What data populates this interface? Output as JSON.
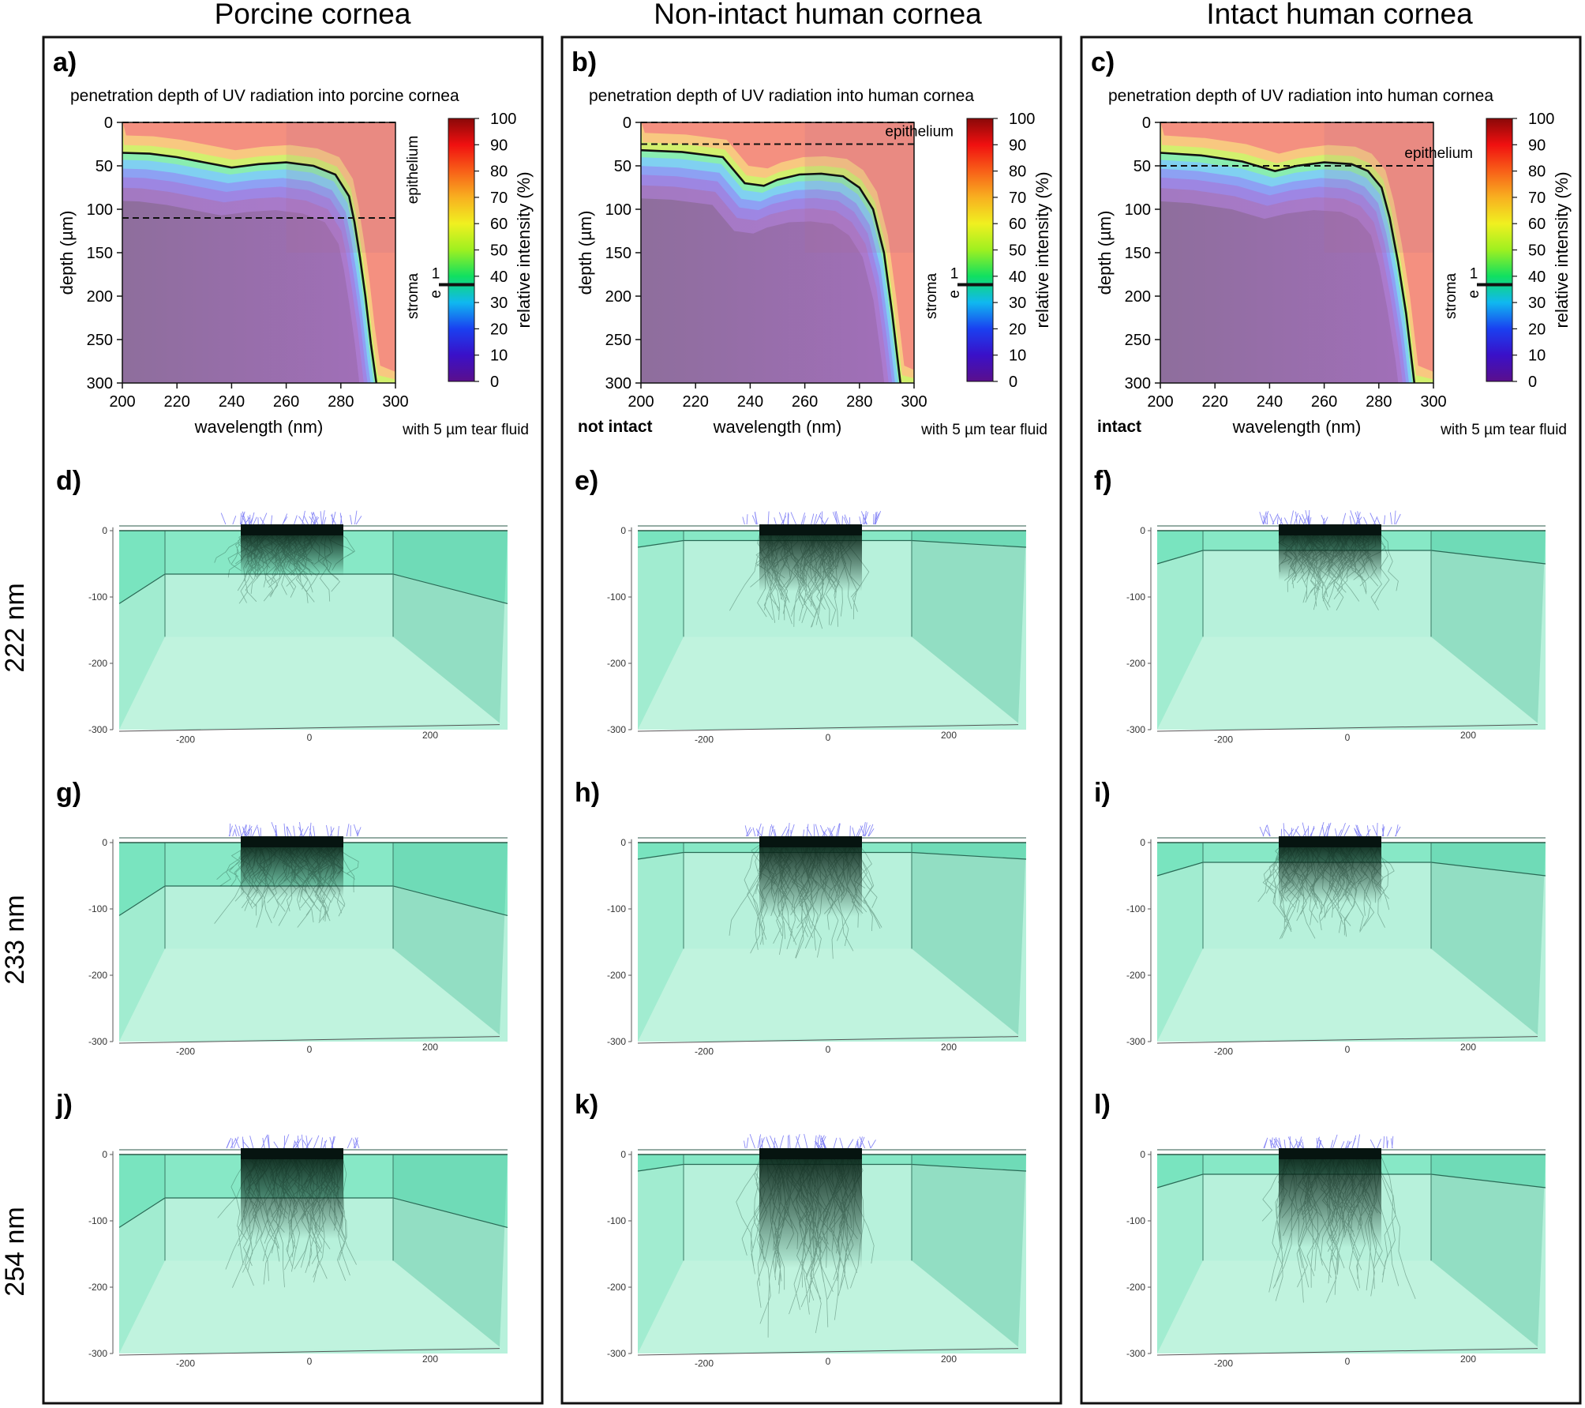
{
  "columns": [
    {
      "title": "Porcine cornea",
      "plot": {
        "label": "a)",
        "title": "penetration depth of UV radiation into porcine cornea",
        "condition": "",
        "epi_depth": 110,
        "epi_label_vertical": true,
        "curve": [
          [
            200,
            35
          ],
          [
            210,
            36
          ],
          [
            220,
            40
          ],
          [
            230,
            46
          ],
          [
            240,
            52
          ],
          [
            250,
            48
          ],
          [
            260,
            46
          ],
          [
            270,
            50
          ],
          [
            278,
            60
          ],
          [
            283,
            85
          ],
          [
            285,
            115
          ],
          [
            287,
            155
          ],
          [
            289,
            200
          ],
          [
            291,
            255
          ],
          [
            293,
            300
          ]
        ]
      },
      "sims": [
        {
          "label": "d)",
          "epi_depth": 110
        },
        {
          "label": "g)",
          "epi_depth": 110
        },
        {
          "label": "j)",
          "epi_depth": 110
        }
      ]
    },
    {
      "title": "Non-intact human cornea",
      "plot": {
        "label": "b)",
        "title": "penetration depth of UV radiation into human cornea",
        "condition": "not intact",
        "epi_depth": 25,
        "epi_label_vertical": false,
        "curve": [
          [
            200,
            32
          ],
          [
            215,
            34
          ],
          [
            230,
            40
          ],
          [
            238,
            70
          ],
          [
            245,
            73
          ],
          [
            250,
            66
          ],
          [
            258,
            60
          ],
          [
            266,
            59
          ],
          [
            274,
            62
          ],
          [
            280,
            75
          ],
          [
            285,
            100
          ],
          [
            289,
            150
          ],
          [
            292,
            220
          ],
          [
            295,
            300
          ]
        ]
      },
      "sims": [
        {
          "label": "e)",
          "epi_depth": 25
        },
        {
          "label": "h)",
          "epi_depth": 25
        },
        {
          "label": "k)",
          "epi_depth": 25
        }
      ]
    },
    {
      "title": "Intact human cornea",
      "plot": {
        "label": "c)",
        "title": "penetration depth of UV radiation into human cornea",
        "condition": "intact",
        "epi_depth": 50,
        "epi_label_vertical": false,
        "curve": [
          [
            200,
            35
          ],
          [
            215,
            38
          ],
          [
            230,
            45
          ],
          [
            242,
            56
          ],
          [
            250,
            50
          ],
          [
            260,
            46
          ],
          [
            270,
            48
          ],
          [
            276,
            56
          ],
          [
            281,
            75
          ],
          [
            284,
            110
          ],
          [
            287,
            160
          ],
          [
            290,
            220
          ],
          [
            293,
            300
          ]
        ]
      },
      "sims": [
        {
          "label": "f)",
          "epi_depth": 50
        },
        {
          "label": "i)",
          "epi_depth": 50
        },
        {
          "label": "l)",
          "epi_depth": 50
        }
      ]
    }
  ],
  "rows": [
    "222 nm",
    "233 nm",
    "254 nm"
  ],
  "plot_common": {
    "xlabel": "wavelength (nm)",
    "ylabel": "depth (µm)",
    "x_ticks": [
      "200",
      "220",
      "240",
      "260",
      "280",
      "300"
    ],
    "y_ticks": [
      "0",
      "50",
      "100",
      "150",
      "200",
      "250",
      "300"
    ],
    "xlim": [
      200,
      300
    ],
    "ylim": [
      0,
      300
    ],
    "epithelium": "epithelium",
    "stroma": "stroma",
    "e_inv_num": "1",
    "e_inv_den": "e",
    "footnote": "with 5 µm tear fluid",
    "cbar_label": "relative intensity (%)",
    "cbar_ticks": [
      "0",
      "10",
      "20",
      "30",
      "40",
      "50",
      "60",
      "70",
      "80",
      "90",
      "100"
    ]
  },
  "sim_common": {
    "z_ticks": [
      "0",
      "-100",
      "-200",
      "-300"
    ],
    "x_ticks": [
      "-200",
      "0",
      "200"
    ]
  },
  "colors": {
    "panel_border": "#111111",
    "slab_fill": "#5fe0b0",
    "beam": "#0a2418",
    "rays": "#3a3af0"
  }
}
